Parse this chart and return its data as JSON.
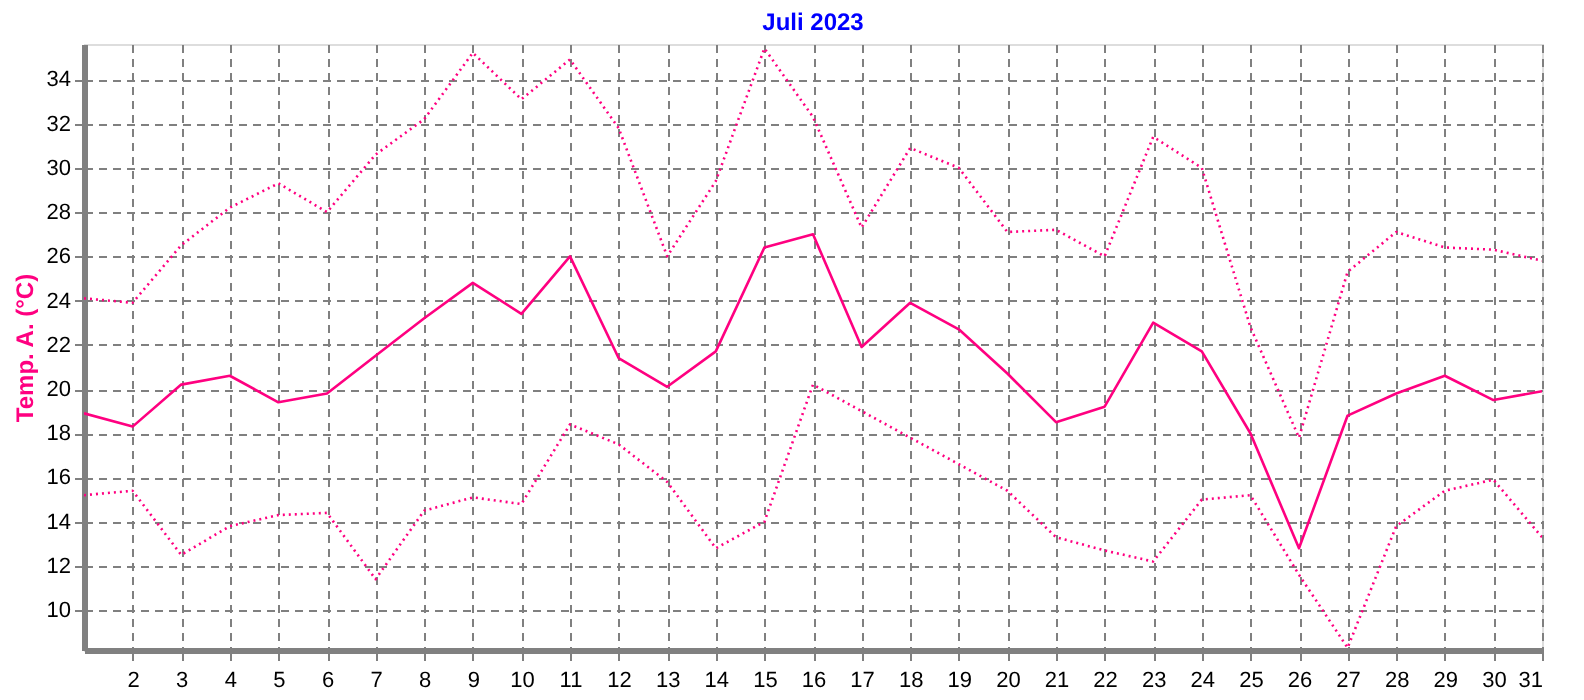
{
  "chart_data": {
    "type": "line",
    "title": "Juli 2023",
    "ylabel": "Temp. A. (°C)",
    "x": [
      1,
      2,
      3,
      4,
      5,
      6,
      7,
      8,
      9,
      10,
      11,
      12,
      13,
      14,
      15,
      16,
      17,
      18,
      19,
      20,
      21,
      22,
      23,
      24,
      25,
      26,
      27,
      28,
      29,
      30,
      31
    ],
    "xlim": [
      1,
      31
    ],
    "xticks": [
      2,
      3,
      4,
      5,
      6,
      7,
      8,
      9,
      10,
      11,
      12,
      13,
      14,
      15,
      16,
      17,
      18,
      19,
      20,
      21,
      22,
      23,
      24,
      25,
      26,
      27,
      28,
      29,
      30,
      31
    ],
    "ylim": [
      8.2,
      35.6
    ],
    "yticks": [
      10,
      12,
      14,
      16,
      18,
      20,
      22,
      24,
      26,
      28,
      30,
      32,
      34
    ],
    "grid": true,
    "legend": false,
    "marker": "none",
    "series": [
      {
        "color": "#ff0080",
        "line_style": "dotted",
        "values": [
          24.1,
          23.9,
          26.5,
          28.2,
          29.3,
          28.0,
          30.6,
          32.2,
          35.2,
          33.1,
          34.9,
          31.8,
          26.0,
          29.4,
          35.4,
          32.3,
          27.3,
          30.9,
          30.0,
          27.1,
          27.2,
          26.0,
          31.4,
          30.0,
          22.8,
          17.8,
          25.3,
          27.1,
          26.4,
          26.3,
          25.8
        ]
      },
      {
        "color": "#ff0080",
        "line_style": "solid",
        "values": [
          18.9,
          18.3,
          20.2,
          20.6,
          19.4,
          19.8,
          21.5,
          23.2,
          24.8,
          23.4,
          26.0,
          21.4,
          20.1,
          21.7,
          26.4,
          27.0,
          21.9,
          23.9,
          22.7,
          20.7,
          18.5,
          19.2,
          23.0,
          21.7,
          18.0,
          12.8,
          18.8,
          19.8,
          20.6,
          19.5,
          19.9
        ]
      },
      {
        "color": "#ff0080",
        "line_style": "dotted",
        "values": [
          15.2,
          15.4,
          12.5,
          13.8,
          14.3,
          14.4,
          11.4,
          14.5,
          15.1,
          14.8,
          18.4,
          17.5,
          15.8,
          12.8,
          14.0,
          20.2,
          19.0,
          17.8,
          16.6,
          15.4,
          13.3,
          12.7,
          12.2,
          15.0,
          15.2,
          11.6,
          8.3,
          13.8,
          15.4,
          15.9,
          13.3
        ]
      }
    ]
  }
}
